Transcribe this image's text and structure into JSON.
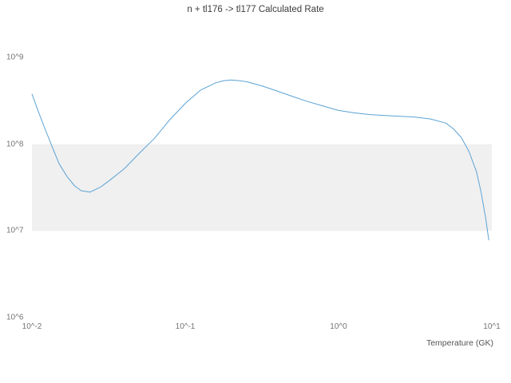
{
  "chart_data": {
    "type": "line",
    "title": "n + tl176 -> tl177 Calculated Rate",
    "xlabel": "Temperature (GK)",
    "ylabel": "",
    "x_scale": "log",
    "y_scale": "log",
    "xlim": [
      0.01,
      10
    ],
    "ylim": [
      1000000,
      1000000000
    ],
    "grid": false,
    "legend": "none",
    "band": {
      "y_from": 10000000,
      "y_to": 100000000,
      "color": "#f0f0f0"
    },
    "line_color": "#5ba3d4",
    "x_ticks": [
      {
        "label": "10^-2",
        "value": 0.01
      },
      {
        "label": "10^-1",
        "value": 0.1
      },
      {
        "label": "10^0",
        "value": 1
      },
      {
        "label": "10^1",
        "value": 10
      }
    ],
    "y_ticks": [
      {
        "label": "10^6",
        "value": 1000000
      },
      {
        "label": "10^7",
        "value": 10000000
      },
      {
        "label": "10^8",
        "value": 100000000
      },
      {
        "label": "10^9",
        "value": 1000000000
      }
    ],
    "series": [
      {
        "name": "calculated-rate",
        "x": [
          0.01,
          0.011,
          0.012,
          0.0135,
          0.015,
          0.017,
          0.019,
          0.021,
          0.024,
          0.028,
          0.032,
          0.04,
          0.05,
          0.063,
          0.079,
          0.1,
          0.126,
          0.158,
          0.178,
          0.2,
          0.224,
          0.251,
          0.316,
          0.398,
          0.501,
          0.631,
          0.794,
          1.0,
          1.26,
          1.58,
          2.0,
          2.51,
          3.16,
          3.98,
          5.01,
          5.62,
          6.31,
          7.08,
          7.94,
          8.51,
          9.12,
          9.55
        ],
        "y": [
          380000000.0,
          240000000.0,
          160000000.0,
          95000000.0,
          60000000.0,
          42000000.0,
          33000000.0,
          29000000.0,
          28000000.0,
          32000000.0,
          38000000.0,
          52000000.0,
          78000000.0,
          117000000.0,
          190000000.0,
          295000000.0,
          420000000.0,
          510000000.0,
          540000000.0,
          550000000.0,
          540000000.0,
          525000000.0,
          470000000.0,
          410000000.0,
          355000000.0,
          310000000.0,
          275000000.0,
          245000000.0,
          230000000.0,
          220000000.0,
          214000000.0,
          210000000.0,
          205000000.0,
          195000000.0,
          175000000.0,
          150000000.0,
          120000000.0,
          83000000.0,
          48000000.0,
          28000000.0,
          14000000.0,
          7800000.0
        ]
      }
    ]
  }
}
